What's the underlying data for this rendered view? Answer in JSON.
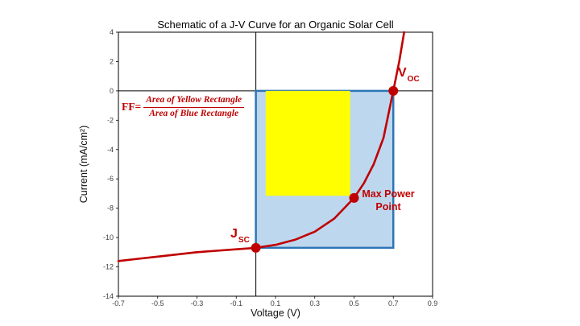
{
  "chart_data": {
    "type": "line",
    "title": "Schematic of a J-V Curve for an Organic Solar Cell",
    "xlabel": "Voltage (V)",
    "ylabel": "Current (mA/cm²)",
    "xlim": [
      -0.7,
      0.9
    ],
    "ylim": [
      -14,
      4
    ],
    "xticks": [
      -0.7,
      -0.5,
      -0.3,
      -0.1,
      0.1,
      0.3,
      0.5,
      0.7,
      0.9
    ],
    "yticks": [
      4,
      2,
      0,
      -2,
      -4,
      -6,
      -8,
      -10,
      -12,
      -14
    ],
    "grid": false,
    "legend": "none",
    "series": [
      {
        "name": "J-V curve",
        "color": "#c00000",
        "points": [
          [
            -0.7,
            -11.6
          ],
          [
            -0.6,
            -11.45
          ],
          [
            -0.5,
            -11.3
          ],
          [
            -0.4,
            -11.15
          ],
          [
            -0.3,
            -11.0
          ],
          [
            -0.2,
            -10.9
          ],
          [
            -0.1,
            -10.8
          ],
          [
            0.0,
            -10.7
          ],
          [
            0.1,
            -10.5
          ],
          [
            0.2,
            -10.15
          ],
          [
            0.3,
            -9.6
          ],
          [
            0.4,
            -8.7
          ],
          [
            0.5,
            -7.3
          ],
          [
            0.55,
            -6.3
          ],
          [
            0.6,
            -5.0
          ],
          [
            0.65,
            -3.2
          ],
          [
            0.7,
            0.0
          ],
          [
            0.73,
            2.0
          ],
          [
            0.755,
            4.0
          ]
        ]
      }
    ],
    "rectangles": [
      {
        "name": "blue-rectangle",
        "x0": 0.0,
        "x1": 0.7,
        "y0": -10.7,
        "y1": 0.0,
        "fill": "#bdd7ee",
        "stroke": "#2e75b6",
        "stroke_width": 2.5
      },
      {
        "name": "yellow-rectangle",
        "x0": 0.05,
        "x1": 0.48,
        "y0": -7.15,
        "y1": 0.0,
        "fill": "#ffff00",
        "stroke": "none",
        "stroke_width": 0
      }
    ],
    "markers": [
      {
        "name": "jsc",
        "x": 0.0,
        "y": -10.7,
        "label": "J_SC"
      },
      {
        "name": "max-power-point",
        "x": 0.5,
        "y": -7.3,
        "label": "Max Power Point"
      },
      {
        "name": "voc",
        "x": 0.7,
        "y": 0.0,
        "label": "V_OC"
      }
    ]
  },
  "annotations": {
    "ff_prefix": "FF=",
    "ff_numerator": "Area of Yellow Rectangle",
    "ff_denominator": "Area of Blue Rectangle",
    "voc_label": "V",
    "voc_sub": "OC",
    "jsc_label": "J",
    "jsc_sub": "SC",
    "mpp_line1": "Max Power",
    "mpp_line2": "Point"
  },
  "colors": {
    "curve": "#c00000",
    "annotation_red": "#c00000",
    "blue_fill": "#bdd7ee",
    "blue_stroke": "#2e75b6",
    "yellow_fill": "#ffff00",
    "axis": "#000000",
    "tick_text": "#404040"
  }
}
